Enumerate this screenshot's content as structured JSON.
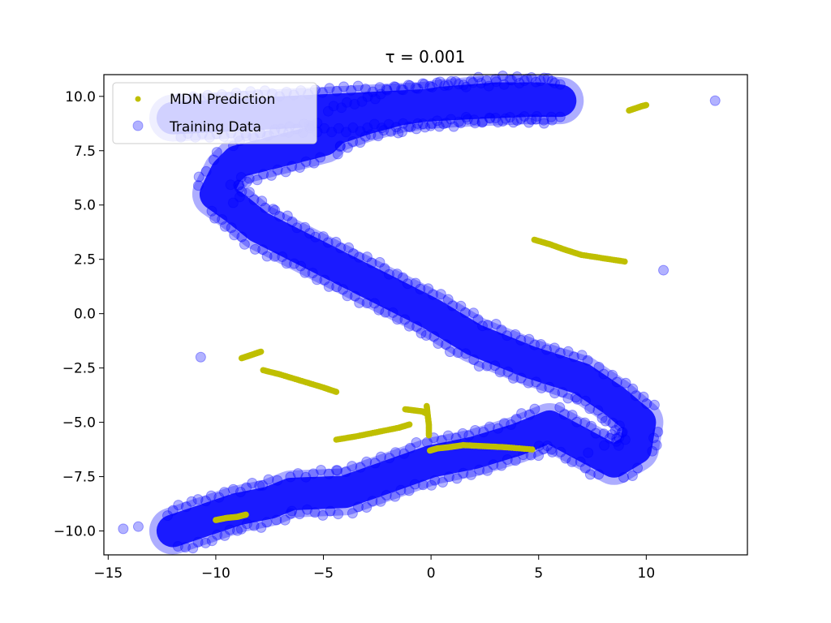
{
  "chart_data": {
    "type": "scatter",
    "title": "τ =  0.001",
    "xlabel": "",
    "ylabel": "",
    "xlim": [
      -15.2,
      14.7
    ],
    "ylim": [
      -11.1,
      11.0
    ],
    "x_ticks": [
      -15,
      -10,
      -5,
      0,
      5,
      10
    ],
    "x_tick_labels": [
      "−15",
      "−10",
      "−5",
      "0",
      "5",
      "10"
    ],
    "y_ticks": [
      -10.0,
      -7.5,
      -5.0,
      -2.5,
      0.0,
      2.5,
      5.0,
      7.5,
      10.0
    ],
    "y_tick_labels": [
      "−10.0",
      "−7.5",
      "−5.0",
      "−2.5",
      "0.0",
      "2.5",
      "5.0",
      "7.5",
      "10.0"
    ],
    "grid": false,
    "legend_position": "upper-left",
    "series": [
      {
        "name": "MDN Prediction",
        "kind": "points",
        "color": "#bfbf00",
        "segments": [
          [
            [
              -10.0,
              -9.5
            ],
            [
              -9.5,
              -9.4
            ],
            [
              -9.0,
              -9.35
            ],
            [
              -8.6,
              -9.25
            ]
          ],
          [
            [
              -8.8,
              -2.05
            ],
            [
              -8.5,
              -1.95
            ],
            [
              -8.2,
              -1.85
            ],
            [
              -7.9,
              -1.75
            ]
          ],
          [
            [
              -7.8,
              -2.6
            ],
            [
              -7.0,
              -2.8
            ],
            [
              -6.0,
              -3.1
            ],
            [
              -5.0,
              -3.4
            ],
            [
              -4.4,
              -3.6
            ]
          ],
          [
            [
              -4.4,
              -5.8
            ],
            [
              -3.5,
              -5.65
            ],
            [
              -2.5,
              -5.45
            ],
            [
              -1.5,
              -5.25
            ],
            [
              -1.0,
              -5.1
            ]
          ],
          [
            [
              -1.2,
              -4.4
            ],
            [
              -0.8,
              -4.45
            ],
            [
              -0.4,
              -4.5
            ],
            [
              -0.2,
              -4.6
            ]
          ],
          [
            [
              -0.2,
              -4.25
            ],
            [
              -0.15,
              -4.7
            ],
            [
              -0.1,
              -5.1
            ],
            [
              -0.1,
              -5.6
            ]
          ],
          [
            [
              -0.05,
              -6.3
            ],
            [
              0.3,
              -6.2
            ],
            [
              0.8,
              -6.15
            ],
            [
              1.5,
              -6.05
            ],
            [
              2.5,
              -6.1
            ],
            [
              3.5,
              -6.15
            ],
            [
              4.7,
              -6.25
            ]
          ],
          [
            [
              4.8,
              3.4
            ],
            [
              5.5,
              3.2
            ],
            [
              6.2,
              2.95
            ],
            [
              7.0,
              2.7
            ],
            [
              8.0,
              2.55
            ],
            [
              9.0,
              2.4
            ]
          ],
          [
            [
              9.2,
              9.35
            ],
            [
              9.5,
              9.45
            ],
            [
              9.8,
              9.55
            ],
            [
              10.0,
              9.6
            ]
          ]
        ]
      },
      {
        "name": "Training Data",
        "kind": "band",
        "color": "#0000ff",
        "alpha": 0.3,
        "path_x": [
          -12,
          -10.5,
          -9,
          -7.5,
          -6.5,
          -4,
          -2,
          0,
          2,
          4,
          5.5,
          7,
          8.5,
          9.5,
          9.7,
          8.5,
          7,
          4.5,
          2,
          0,
          -2,
          -4,
          -6,
          -8,
          -9,
          -10,
          -9.5,
          -9,
          -7,
          -5,
          -4.5,
          -3,
          -1.5,
          0.5,
          3,
          5,
          6,
          4.5,
          2,
          0,
          -2,
          -4,
          -6,
          -8,
          -10,
          -12
        ],
        "path_y": [
          -10,
          -9.5,
          -9.0,
          -8.7,
          -8.3,
          -8.2,
          -7.5,
          -6.8,
          -6.4,
          -5.8,
          -5.2,
          -6,
          -6.8,
          -6.2,
          -5.0,
          -4.0,
          -3.0,
          -2.2,
          -1.2,
          0.0,
          1.0,
          2.0,
          3.0,
          4.0,
          4.8,
          5.5,
          6.5,
          7.0,
          7.5,
          8.0,
          8.5,
          9.0,
          9.4,
          9.7,
          9.9,
          9.9,
          9.8,
          9.8,
          9.7,
          9.6,
          9.5,
          9.4,
          9.3,
          9.2,
          9.1,
          9.0
        ],
        "outliers": [
          [
            -14.3,
            -9.9
          ],
          [
            -13.6,
            -9.8
          ],
          [
            -10.7,
            -2.0
          ],
          [
            7.3,
            -6.4
          ],
          [
            10.8,
            2.0
          ],
          [
            13.2,
            9.8
          ]
        ]
      }
    ]
  }
}
